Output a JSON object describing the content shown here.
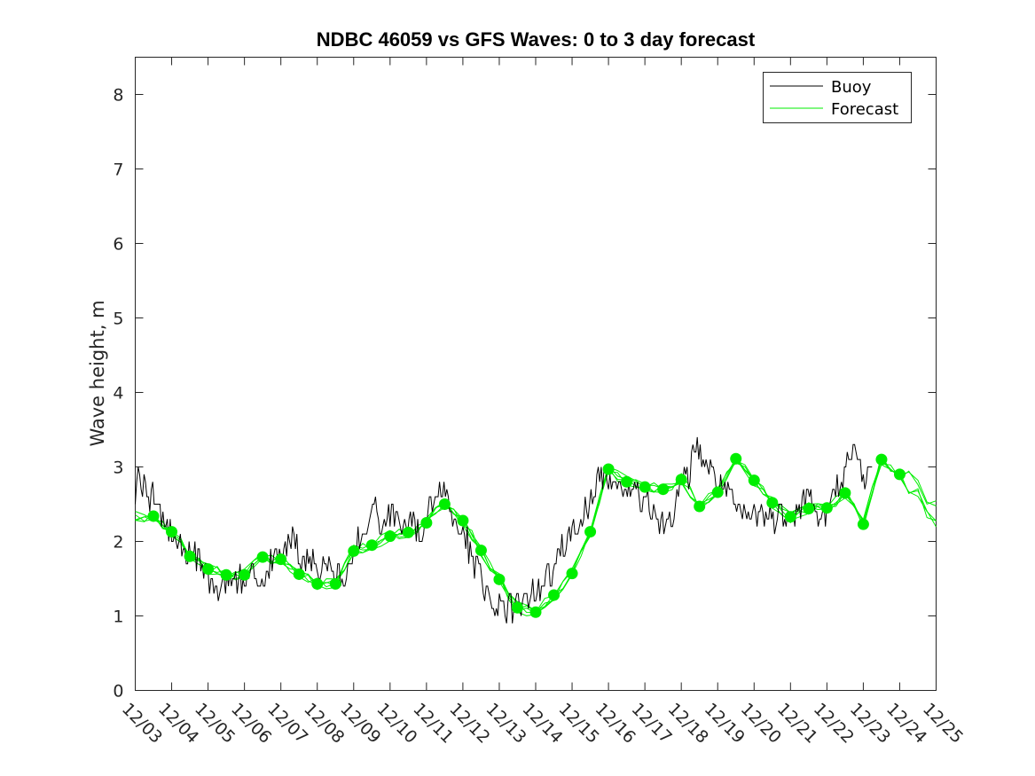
{
  "chart_data": {
    "type": "line",
    "title": "NDBC 46059 vs GFS Waves: 0 to 3 day forecast",
    "xlabel": "",
    "ylabel": "Wave height, m",
    "xlim": [
      0,
      22
    ],
    "ylim": [
      0,
      8.5
    ],
    "x_tick_labels": [
      "12/03",
      "12/04",
      "12/05",
      "12/06",
      "12/07",
      "12/08",
      "12/09",
      "12/10",
      "12/11",
      "12/12",
      "12/13",
      "12/14",
      "12/15",
      "12/16",
      "12/17",
      "12/18",
      "12/19",
      "12/20",
      "12/21",
      "12/22",
      "12/23",
      "12/24",
      "12/25"
    ],
    "y_ticks": [
      0,
      1,
      2,
      3,
      4,
      5,
      6,
      7,
      8
    ],
    "legend": {
      "position": "top-right",
      "entries": [
        "Buoy",
        "Forecast"
      ]
    },
    "colors": {
      "buoy": "#000000",
      "forecast": "#00ee00"
    },
    "buoy_x_step_days": 0.04,
    "buoy_anchors": [
      [
        0.0,
        2.7
      ],
      [
        0.1,
        3.0
      ],
      [
        0.3,
        2.6
      ],
      [
        0.5,
        2.6
      ],
      [
        0.7,
        2.4
      ],
      [
        0.9,
        2.2
      ],
      [
        1.0,
        2.1
      ],
      [
        1.3,
        1.9
      ],
      [
        1.6,
        1.8
      ],
      [
        1.9,
        1.6
      ],
      [
        2.1,
        1.5
      ],
      [
        2.3,
        1.4
      ],
      [
        2.6,
        1.5
      ],
      [
        3.0,
        1.5
      ],
      [
        3.3,
        1.5
      ],
      [
        3.5,
        1.55
      ],
      [
        3.7,
        1.7
      ],
      [
        3.9,
        1.8
      ],
      [
        4.1,
        1.85
      ],
      [
        4.3,
        2.1
      ],
      [
        4.4,
        1.95
      ],
      [
        4.6,
        1.8
      ],
      [
        4.8,
        1.75
      ],
      [
        5.0,
        1.7
      ],
      [
        5.3,
        1.65
      ],
      [
        5.6,
        1.55
      ],
      [
        5.8,
        1.45
      ],
      [
        5.95,
        1.6
      ],
      [
        6.05,
        2.0
      ],
      [
        6.2,
        2.2
      ],
      [
        6.4,
        2.3
      ],
      [
        6.6,
        2.35
      ],
      [
        6.8,
        2.2
      ],
      [
        7.0,
        2.4
      ],
      [
        7.2,
        2.3
      ],
      [
        7.5,
        2.2
      ],
      [
        7.7,
        2.2
      ],
      [
        7.8,
        2.1
      ],
      [
        8.0,
        2.3
      ],
      [
        8.2,
        2.55
      ],
      [
        8.4,
        2.7
      ],
      [
        8.6,
        2.55
      ],
      [
        8.8,
        2.3
      ],
      [
        9.0,
        2.1
      ],
      [
        9.2,
        1.9
      ],
      [
        9.4,
        1.65
      ],
      [
        9.6,
        1.4
      ],
      [
        9.8,
        1.2
      ],
      [
        10.0,
        1.1
      ],
      [
        10.2,
        1.1
      ],
      [
        10.4,
        1.1
      ],
      [
        10.6,
        1.15
      ],
      [
        10.8,
        1.2
      ],
      [
        11.0,
        1.35
      ],
      [
        11.2,
        1.45
      ],
      [
        11.4,
        1.55
      ],
      [
        11.6,
        1.7
      ],
      [
        11.8,
        1.95
      ],
      [
        12.0,
        2.1
      ],
      [
        12.2,
        2.3
      ],
      [
        12.4,
        2.4
      ],
      [
        12.6,
        2.7
      ],
      [
        12.8,
        2.9
      ],
      [
        13.0,
        2.85
      ],
      [
        13.2,
        2.8
      ],
      [
        13.4,
        2.7
      ],
      [
        13.6,
        2.65
      ],
      [
        13.8,
        2.6
      ],
      [
        14.0,
        2.5
      ],
      [
        14.2,
        2.4
      ],
      [
        14.4,
        2.25
      ],
      [
        14.6,
        2.25
      ],
      [
        14.8,
        2.5
      ],
      [
        15.0,
        2.7
      ],
      [
        15.2,
        2.9
      ],
      [
        15.4,
        3.3
      ],
      [
        15.6,
        3.1
      ],
      [
        15.8,
        2.95
      ],
      [
        16.0,
        2.8
      ],
      [
        16.2,
        2.7
      ],
      [
        16.4,
        2.5
      ],
      [
        16.6,
        2.35
      ],
      [
        16.8,
        2.3
      ],
      [
        17.0,
        2.35
      ],
      [
        17.2,
        2.4
      ],
      [
        17.4,
        2.35
      ],
      [
        17.6,
        2.3
      ],
      [
        17.8,
        2.4
      ],
      [
        18.0,
        2.45
      ],
      [
        18.2,
        2.4
      ],
      [
        18.4,
        2.6
      ],
      [
        18.6,
        2.5
      ],
      [
        18.8,
        2.3
      ],
      [
        19.0,
        2.4
      ],
      [
        19.2,
        2.6
      ],
      [
        19.4,
        2.9
      ],
      [
        19.6,
        3.0
      ],
      [
        19.8,
        3.2
      ],
      [
        19.9,
        3.0
      ],
      [
        20.0,
        2.9
      ],
      [
        20.1,
        2.9
      ],
      [
        20.25,
        2.85
      ]
    ],
    "forecast_points": [
      [
        0.5,
        2.34
      ],
      [
        1.0,
        2.13
      ],
      [
        1.5,
        1.8
      ],
      [
        2.0,
        1.63
      ],
      [
        2.5,
        1.55
      ],
      [
        3.0,
        1.55
      ],
      [
        3.5,
        1.79
      ],
      [
        4.0,
        1.76
      ],
      [
        4.5,
        1.56
      ],
      [
        5.0,
        1.43
      ],
      [
        5.5,
        1.43
      ],
      [
        6.0,
        1.87
      ],
      [
        6.5,
        1.95
      ],
      [
        7.0,
        2.07
      ],
      [
        7.5,
        2.12
      ],
      [
        8.0,
        2.25
      ],
      [
        8.5,
        2.5
      ],
      [
        9.0,
        2.28
      ],
      [
        9.5,
        1.88
      ],
      [
        10.0,
        1.49
      ],
      [
        10.5,
        1.11
      ],
      [
        11.0,
        1.05
      ],
      [
        11.5,
        1.28
      ],
      [
        12.0,
        1.57
      ],
      [
        12.5,
        2.13
      ],
      [
        13.0,
        2.97
      ],
      [
        13.5,
        2.8
      ],
      [
        14.0,
        2.73
      ],
      [
        14.5,
        2.7
      ],
      [
        15.0,
        2.83
      ],
      [
        15.5,
        2.47
      ],
      [
        16.0,
        2.66
      ],
      [
        16.5,
        3.11
      ],
      [
        17.0,
        2.82
      ],
      [
        17.5,
        2.52
      ],
      [
        18.0,
        2.33
      ],
      [
        18.5,
        2.44
      ],
      [
        19.0,
        2.45
      ],
      [
        19.5,
        2.65
      ],
      [
        20.0,
        2.23
      ],
      [
        20.5,
        3.1
      ],
      [
        21.0,
        2.9
      ]
    ]
  }
}
